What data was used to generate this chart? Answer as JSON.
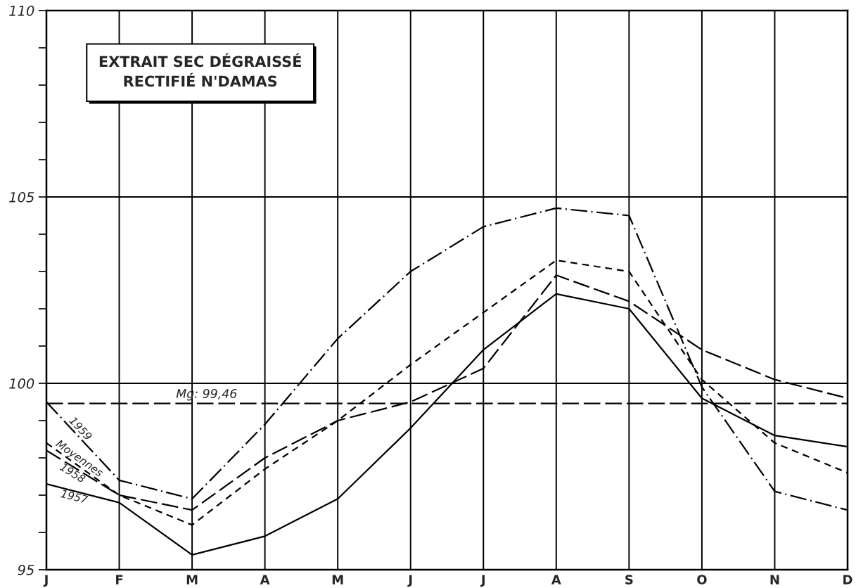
{
  "chart_data": {
    "type": "line",
    "title": "EXTRAIT SEC DÉGRAISSÉ RECTIFIÉ N'DAMAS",
    "categories": [
      "J",
      "F",
      "M",
      "A",
      "M",
      "J",
      "J",
      "A",
      "S",
      "O",
      "N",
      "D"
    ],
    "series": [
      {
        "name": "1959",
        "color": "#000000",
        "line_style": "dashdot",
        "values": [
          99.5,
          97.4,
          96.9,
          98.9,
          101.2,
          103.0,
          104.2,
          104.7,
          104.5,
          99.9,
          97.1,
          96.6
        ]
      },
      {
        "name": "Moyennes",
        "color": "#000000",
        "line_style": "dashed",
        "values": [
          98.4,
          97.0,
          96.2,
          97.7,
          99.0,
          100.5,
          101.9,
          103.3,
          103.0,
          100.1,
          98.4,
          97.6
        ]
      },
      {
        "name": "1958",
        "color": "#000000",
        "line_style": "longdash",
        "values": [
          98.2,
          97.0,
          96.6,
          98.0,
          99.0,
          99.5,
          100.4,
          102.9,
          102.2,
          100.9,
          100.1,
          99.6
        ]
      },
      {
        "name": "1957",
        "color": "#000000",
        "line_style": "solid",
        "values": [
          97.3,
          96.8,
          95.4,
          95.9,
          96.9,
          98.8,
          100.9,
          102.4,
          102.0,
          99.6,
          98.6,
          98.3
        ]
      }
    ],
    "ylim": [
      95,
      110
    ],
    "yticks": [
      95,
      {
        "value": 96,
        "label": null
      },
      {
        "value": 97,
        "label": null
      },
      {
        "value": 98,
        "label": null
      },
      {
        "value": 99,
        "label": null
      },
      100,
      {
        "value": 101,
        "label": null
      },
      {
        "value": 102,
        "label": null
      },
      {
        "value": 103,
        "label": null
      },
      {
        "value": 104,
        "label": null
      },
      105,
      {
        "value": 106,
        "label": null
      },
      {
        "value": 107,
        "label": null
      },
      {
        "value": 108,
        "label": null
      },
      {
        "value": 109,
        "label": null
      },
      110
    ],
    "grid": true,
    "ref_lines": [
      {
        "axis": "y",
        "value": 99.46,
        "label": "Mg: 99,46",
        "color": "#000000",
        "line_style": "longdash"
      }
    ]
  }
}
